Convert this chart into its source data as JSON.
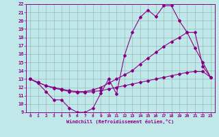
{
  "xlabel": "Windchill (Refroidissement éolien,°C)",
  "xlim": [
    -0.5,
    23.5
  ],
  "ylim": [
    9,
    22
  ],
  "xticks": [
    0,
    1,
    2,
    3,
    4,
    5,
    6,
    7,
    8,
    9,
    10,
    11,
    12,
    13,
    14,
    15,
    16,
    17,
    18,
    19,
    20,
    21,
    22,
    23
  ],
  "yticks": [
    9,
    10,
    11,
    12,
    13,
    14,
    15,
    16,
    17,
    18,
    19,
    20,
    21,
    22
  ],
  "bg_color": "#c0e8e8",
  "line_color": "#880088",
  "grid_color": "#99bbbb",
  "line1_x": [
    0,
    1,
    2,
    3,
    4,
    5,
    6,
    7,
    8,
    9,
    10,
    11,
    12,
    13,
    14,
    15,
    16,
    17,
    18,
    19,
    20,
    21,
    22,
    23
  ],
  "line1_y": [
    13,
    12.5,
    11.5,
    10.5,
    10.5,
    9.5,
    9.0,
    9.0,
    9.5,
    11.3,
    13.0,
    11.2,
    15.8,
    18.6,
    20.4,
    21.3,
    20.5,
    21.8,
    21.8,
    20.0,
    18.6,
    16.7,
    15.0,
    13.2
  ],
  "line2_x": [
    0,
    1,
    2,
    3,
    4,
    5,
    6,
    7,
    8,
    9,
    10,
    11,
    12,
    13,
    14,
    15,
    16,
    17,
    18,
    19,
    20,
    21,
    22,
    23
  ],
  "line2_y": [
    13,
    12.6,
    12.2,
    12.0,
    11.8,
    11.6,
    11.5,
    11.5,
    11.7,
    12.0,
    12.5,
    13.0,
    13.5,
    14.0,
    14.8,
    15.5,
    16.2,
    16.9,
    17.5,
    18.0,
    18.6,
    18.6,
    14.5,
    13.2
  ],
  "line3_x": [
    0,
    1,
    2,
    3,
    4,
    5,
    6,
    7,
    8,
    9,
    10,
    11,
    12,
    13,
    14,
    15,
    16,
    17,
    18,
    19,
    20,
    21,
    22,
    23
  ],
  "line3_y": [
    13,
    12.6,
    12.2,
    11.9,
    11.7,
    11.5,
    11.4,
    11.4,
    11.5,
    11.6,
    11.8,
    12.0,
    12.2,
    12.4,
    12.6,
    12.8,
    13.0,
    13.2,
    13.4,
    13.6,
    13.8,
    13.9,
    13.9,
    13.2
  ]
}
